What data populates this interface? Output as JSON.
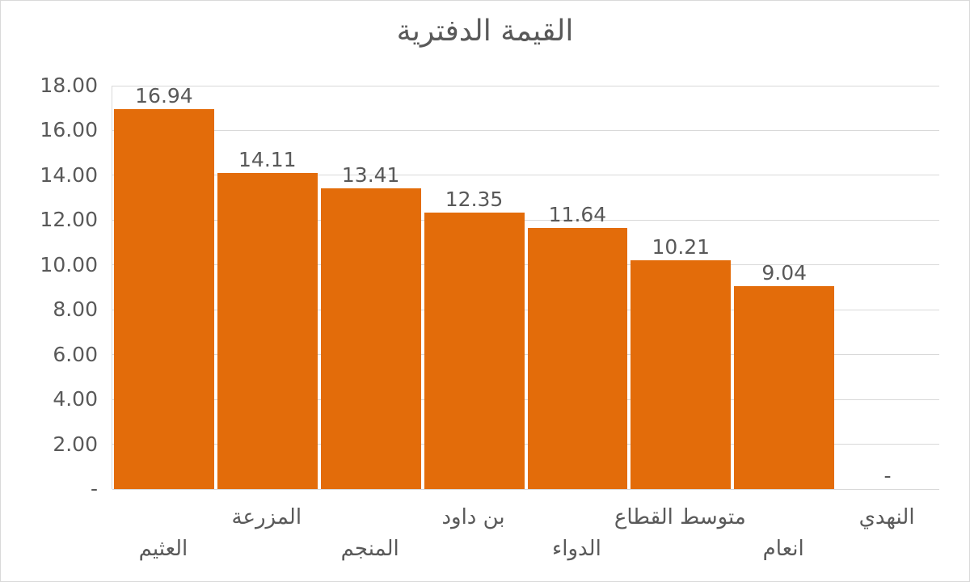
{
  "chart_data": {
    "type": "bar",
    "title": "القيمة الدفترية",
    "categories": [
      "العثيم",
      "المزرعة",
      "المنجم",
      "بن داود",
      "الدواء",
      "متوسط القطاع",
      "انعام",
      "النهدي"
    ],
    "values": [
      16.94,
      14.11,
      13.41,
      12.35,
      11.64,
      10.21,
      9.04,
      0
    ],
    "value_labels": [
      "16.94",
      "14.11",
      "13.41",
      "12.35",
      "11.64",
      "10.21",
      "9.04",
      "-"
    ],
    "xlabel": "",
    "ylabel": "",
    "ylim": [
      0,
      18
    ],
    "ytick_step": 2,
    "ytick_labels": [
      "-",
      "2.00",
      "4.00",
      "6.00",
      "8.00",
      "10.00",
      "12.00",
      "14.00",
      "16.00",
      "18.00"
    ],
    "grid": true,
    "legend": "none",
    "colors": {
      "bar": "#E36C0A",
      "gridline": "#D9D9D9",
      "text": "#595959",
      "background": "#FFFFFF",
      "frame_border": "#D9D9D9"
    }
  }
}
